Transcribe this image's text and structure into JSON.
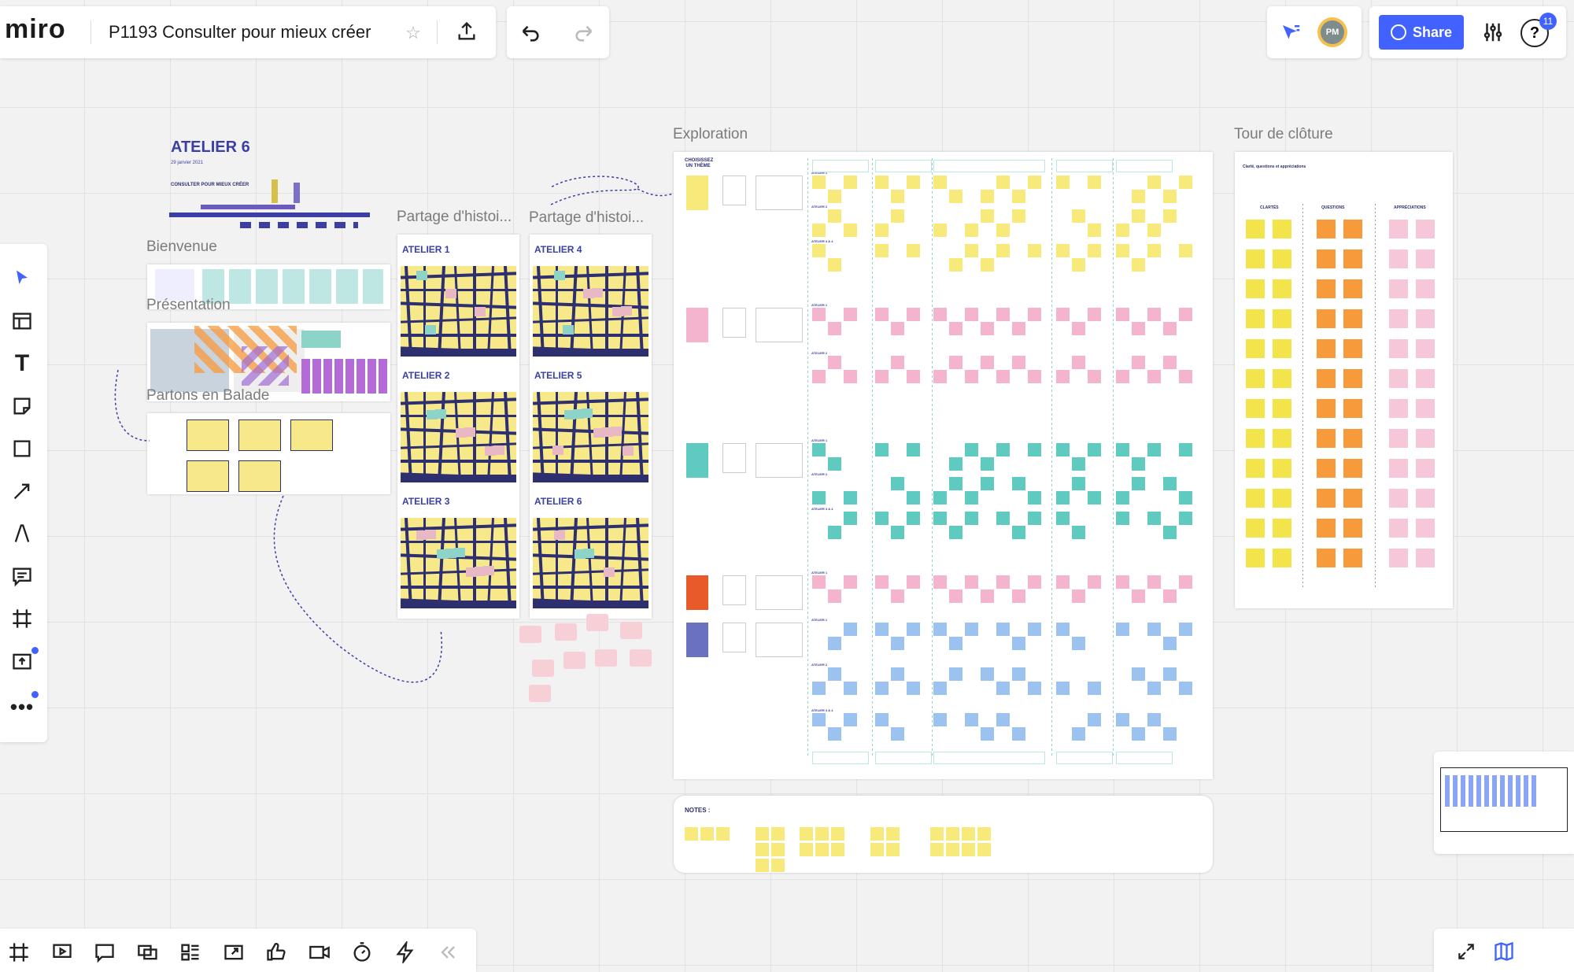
{
  "app": {
    "logo": "miro",
    "board_title": "P1193 Consulter pour mieux créer"
  },
  "header": {
    "share_label": "Share",
    "avatar_initials": "PM",
    "notification_count": "11"
  },
  "colors": {
    "accent": "#4262ff",
    "sticky_yellow": "#f7ea7a",
    "sticky_pink": "#f5b4cd",
    "sticky_teal": "#5fcbc0",
    "sticky_blue": "#9cc3ef",
    "sticky_orange": "#f79a3b",
    "avatar_ring": "#f2c14e"
  },
  "left_toolbar": {
    "tools": [
      "select-icon",
      "templates-icon",
      "text-icon",
      "sticky-note-icon",
      "shape-icon",
      "connection-line-icon",
      "pen-icon",
      "comment-icon",
      "frame-icon",
      "upload-icon",
      "more-icon"
    ]
  },
  "bottom_toolbar": {
    "tools": [
      "frames-icon",
      "presentation-icon",
      "comments-icon",
      "video-chat-icon",
      "cards-icon",
      "screen-share-icon",
      "voting-icon",
      "video-call-icon",
      "timer-icon",
      "activity-icon",
      "collapse-icon"
    ]
  },
  "canvas": {
    "atelier6": {
      "title": "ATELIER 6",
      "date": "29 janvier 2021",
      "subtitle": "CONSULTER POUR MIEUX CRÉER"
    },
    "frames": {
      "bienvenue": "Bienvenue",
      "presentation": "Présentation",
      "partons": "Partons en Balade",
      "partage1": "Partage d'histoi...",
      "partage2": "Partage d'histoi...",
      "exploration": "Exploration",
      "tour": "Tour de clôture"
    },
    "partage_cards_left": [
      "ATELIER 1",
      "ATELIER 2",
      "ATELIER 3"
    ],
    "partage_cards_right": [
      "ATELIER 4",
      "ATELIER 5",
      "ATELIER 6"
    ],
    "exploration": {
      "heading": "CHOISISSEZ UN THÈME",
      "row_labels": [
        "ATELIER 1",
        "ATELIER 2",
        "ATELIER 3 & 4"
      ]
    },
    "tour": {
      "heading": "Clarté, questions et appréciations",
      "columns": [
        "CLARTÉS",
        "QUESTIONS",
        "APPRÉCIATIONS"
      ]
    },
    "notes": {
      "label": "NOTES :"
    }
  }
}
